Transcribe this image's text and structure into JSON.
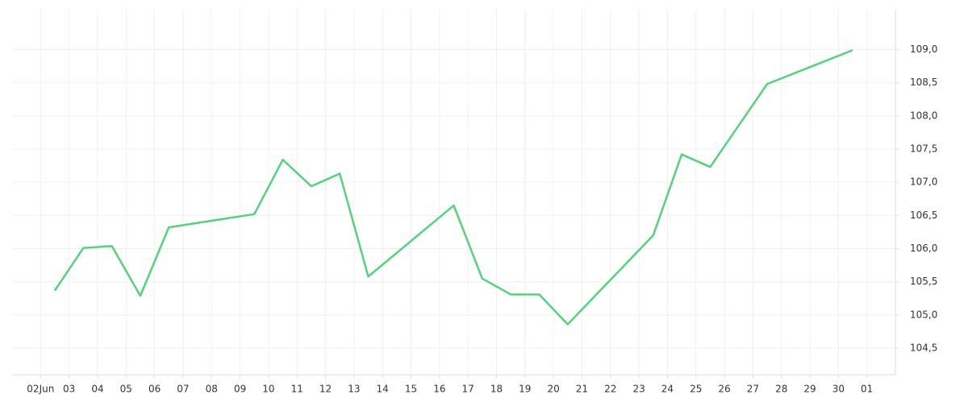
{
  "chart_data": {
    "type": "line",
    "x": [
      0.5,
      1.5,
      2.5,
      3.5,
      4.5,
      7.5,
      8.5,
      9.5,
      10.5,
      11.5,
      14.5,
      15.5,
      16.5,
      17.5,
      18.5,
      21.5,
      22.5,
      23.5,
      25.5,
      28.5
    ],
    "series": [
      {
        "color": "#53d37b",
        "values": [
          105.37,
          106.01,
          106.04,
          105.29,
          106.32,
          106.52,
          107.34,
          106.94,
          107.13,
          105.58,
          106.65,
          105.55,
          105.31,
          105.31,
          104.86,
          106.2,
          107.42,
          107.23,
          108.48,
          108.99
        ]
      }
    ],
    "xlim": [
      -1,
      30
    ],
    "xticks": [
      {
        "value": 0,
        "label": "02Jun"
      },
      {
        "value": 1,
        "label": "03"
      },
      {
        "value": 2,
        "label": "04"
      },
      {
        "value": 3,
        "label": "05"
      },
      {
        "value": 4,
        "label": "06"
      },
      {
        "value": 5,
        "label": "07"
      },
      {
        "value": 6,
        "label": "08"
      },
      {
        "value": 7,
        "label": "09"
      },
      {
        "value": 8,
        "label": "10"
      },
      {
        "value": 9,
        "label": "11"
      },
      {
        "value": 10,
        "label": "12"
      },
      {
        "value": 11,
        "label": "13"
      },
      {
        "value": 12,
        "label": "14"
      },
      {
        "value": 13,
        "label": "15"
      },
      {
        "value": 14,
        "label": "16"
      },
      {
        "value": 15,
        "label": "17"
      },
      {
        "value": 16,
        "label": "18"
      },
      {
        "value": 17,
        "label": "19"
      },
      {
        "value": 18,
        "label": "20"
      },
      {
        "value": 19,
        "label": "21"
      },
      {
        "value": 20,
        "label": "22"
      },
      {
        "value": 21,
        "label": "23"
      },
      {
        "value": 22,
        "label": "24"
      },
      {
        "value": 23,
        "label": "25"
      },
      {
        "value": 24,
        "label": "26"
      },
      {
        "value": 25,
        "label": "27"
      },
      {
        "value": 26,
        "label": "28"
      },
      {
        "value": 27,
        "label": "29"
      },
      {
        "value": 28,
        "label": "30"
      },
      {
        "value": 29,
        "label": "01"
      }
    ],
    "ylim": [
      104.1,
      109.6
    ],
    "yticks": [
      {
        "value": 104.5,
        "label": "104,5"
      },
      {
        "value": 105,
        "label": "105,0"
      },
      {
        "value": 105.5,
        "label": "105,5"
      },
      {
        "value": 106,
        "label": "106,0"
      },
      {
        "value": 106.5,
        "label": "106,5"
      },
      {
        "value": 107,
        "label": "107,0"
      },
      {
        "value": 107.5,
        "label": "107,5"
      },
      {
        "value": 108,
        "label": "108,0"
      },
      {
        "value": 108.5,
        "label": "108,5"
      },
      {
        "value": 109,
        "label": "109,0"
      }
    ],
    "grid": true
  }
}
